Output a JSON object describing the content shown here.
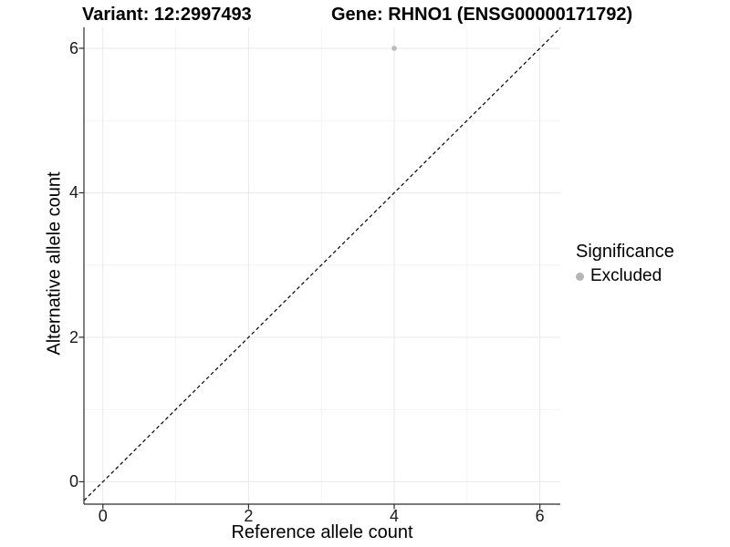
{
  "chart_data": {
    "type": "scatter",
    "title_left": "Variant: 12:2997493",
    "title_right": "Gene: RHNO1 (ENSG00000171792)",
    "xlabel": "Reference allele count",
    "ylabel": "Alternative allele count",
    "x_ticks": [
      0,
      2,
      4,
      6
    ],
    "y_ticks": [
      0,
      2,
      4,
      6
    ],
    "x_minor_ticks": [
      1,
      3,
      5
    ],
    "y_minor_ticks": [
      1,
      3,
      5
    ],
    "xlim": [
      -0.26,
      6.28
    ],
    "ylim": [
      -0.31,
      6.29
    ],
    "grid": true,
    "legend_position": "right",
    "legend": {
      "title": "Significance",
      "items": [
        {
          "label": "Excluded",
          "color": "#b5b5b5",
          "marker": "circle"
        }
      ]
    },
    "series": [
      {
        "name": "Excluded",
        "color": "#bcbcbc",
        "marker": "circle",
        "points": [
          {
            "x": 4,
            "y": 6
          }
        ]
      }
    ],
    "reference_line": {
      "slope": 1,
      "intercept": 0,
      "style": "dashed",
      "color": "#000000"
    }
  },
  "colors": {
    "background": "#ffffff",
    "grid_major": "#e9e9e9",
    "grid_minor": "#f3f3f3",
    "axis_line": "#2b2b2b",
    "tick_mark": "#2b2b2b",
    "text": "#000000"
  }
}
